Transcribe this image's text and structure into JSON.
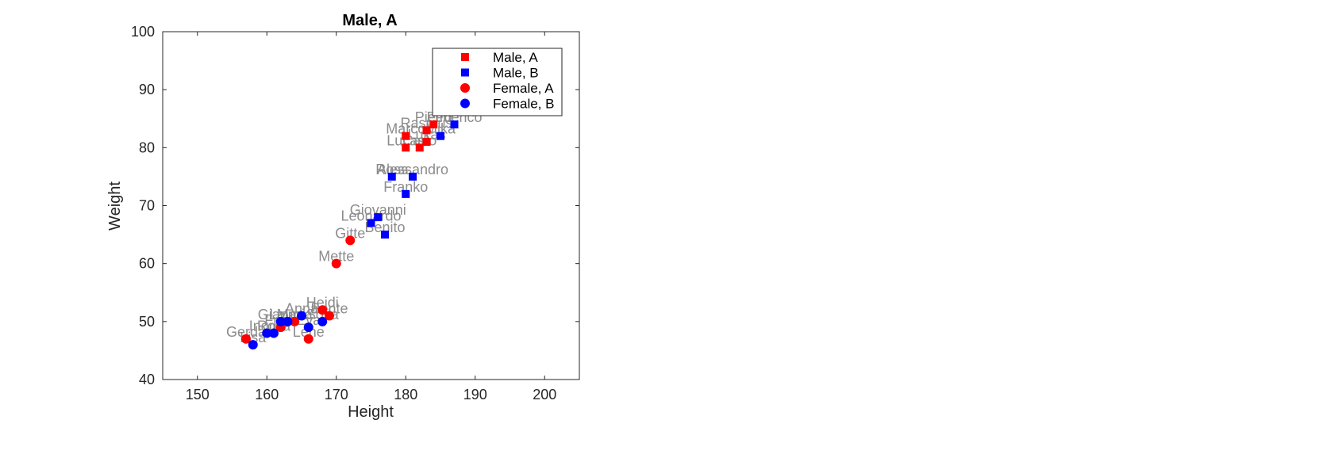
{
  "chart_data": {
    "type": "scatter",
    "title": "Male, A",
    "xlabel": "Height",
    "ylabel": "Weight",
    "xlim": [
      145,
      205
    ],
    "ylim": [
      40,
      100
    ],
    "xticks": [
      150,
      160,
      170,
      180,
      190,
      200
    ],
    "yticks": [
      40,
      50,
      60,
      70,
      80,
      90,
      100
    ],
    "grid": false,
    "legend_position": "top-right",
    "colors": {
      "A": "#ff0000",
      "B": "#0000ff",
      "label": "#8c8c8c"
    },
    "series": [
      {
        "name": "Male, A",
        "marker": "square",
        "color": "#ff0000",
        "points": [
          {
            "x": 180,
            "y": 80,
            "label": "Lucas"
          },
          {
            "x": 180,
            "y": 82,
            "label": "Marco"
          },
          {
            "x": 182,
            "y": 80,
            "label": "Carlo"
          },
          {
            "x": 183,
            "y": 83,
            "label": "Rasmus"
          },
          {
            "x": 183,
            "y": 81,
            "label": "Lukas"
          },
          {
            "x": 184,
            "y": 84,
            "label": "Pietro"
          }
        ]
      },
      {
        "name": "Male, B",
        "marker": "square",
        "color": "#0000ff",
        "points": [
          {
            "x": 187,
            "y": 84,
            "label": "Federico"
          },
          {
            "x": 185,
            "y": 82,
            "label": "Mika"
          },
          {
            "x": 178,
            "y": 75,
            "label": "Ross"
          },
          {
            "x": 181,
            "y": 75,
            "label": "Alessandro"
          },
          {
            "x": 180,
            "y": 72,
            "label": "Franko"
          },
          {
            "x": 176,
            "y": 68,
            "label": "Giovanni"
          },
          {
            "x": 175,
            "y": 67,
            "label": "Leonardo"
          },
          {
            "x": 177,
            "y": 65,
            "label": "Benito"
          }
        ]
      },
      {
        "name": "Female, A",
        "marker": "circle",
        "color": "#ff0000",
        "points": [
          {
            "x": 172,
            "y": 64,
            "label": "Gitte"
          },
          {
            "x": 170,
            "y": 60,
            "label": "Mette"
          },
          {
            "x": 168,
            "y": 52,
            "label": "Heidi"
          },
          {
            "x": 169,
            "y": 51,
            "label": "Bente"
          },
          {
            "x": 166,
            "y": 47,
            "label": "Lene"
          },
          {
            "x": 157,
            "y": 47,
            "label": "Gerda"
          },
          {
            "x": 162,
            "y": 49,
            "label": "Frida"
          },
          {
            "x": 164,
            "y": 50,
            "label": "Maria"
          }
        ]
      },
      {
        "name": "Female, B",
        "marker": "circle",
        "color": "#0000ff",
        "points": [
          {
            "x": 158,
            "y": 46,
            "label": "Lisa"
          },
          {
            "x": 160,
            "y": 48,
            "label": "Ingrid"
          },
          {
            "x": 161,
            "y": 48,
            "label": "Rosa"
          },
          {
            "x": 162,
            "y": 50,
            "label": "Gianna"
          },
          {
            "x": 163,
            "y": 50,
            "label": "Laura"
          },
          {
            "x": 165,
            "y": 51,
            "label": "Anna"
          },
          {
            "x": 166,
            "y": 49,
            "label": "Eva"
          },
          {
            "x": 168,
            "y": 50,
            "label": "Sofia"
          }
        ]
      }
    ]
  }
}
